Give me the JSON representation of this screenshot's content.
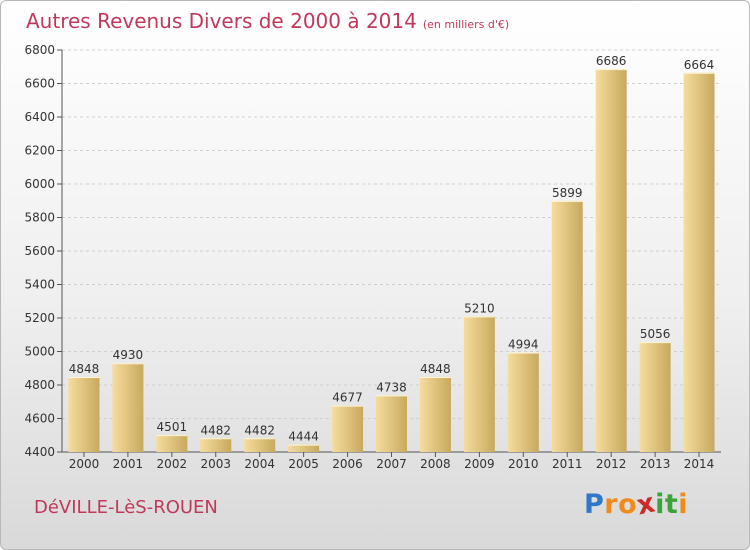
{
  "title": "Autres Revenus Divers de 2000 à 2014",
  "subtitle": "(en milliers d'€)",
  "location": "DéVILLE-LèS-ROUEN",
  "brand": {
    "letters": [
      "P",
      "r",
      "o",
      "x",
      "i",
      "t",
      "i"
    ],
    "colors": [
      "#2f77c8",
      "#f08a1c",
      "#f08a1c",
      "#cc2b2b",
      "#3aa33a",
      "#3aa33a",
      "#f08a1c"
    ]
  },
  "colors": {
    "title": "#c0395a",
    "bar_light": "#f6dd9e",
    "bar_dark": "#c7a95e"
  },
  "chart_data": {
    "type": "bar",
    "title": "Autres Revenus Divers de 2000 à 2014",
    "subtitle": "(en milliers d'€)",
    "categories": [
      "2000",
      "2001",
      "2002",
      "2003",
      "2004",
      "2005",
      "2006",
      "2007",
      "2008",
      "2009",
      "2010",
      "2011",
      "2012",
      "2013",
      "2014"
    ],
    "values": [
      4848,
      4930,
      4501,
      4482,
      4482,
      4444,
      4677,
      4738,
      4848,
      5210,
      4994,
      5899,
      6686,
      5056,
      6664
    ],
    "value_labels": [
      "4848",
      "4930",
      "4501",
      "4482",
      "4482",
      "4444",
      "4677",
      "4738",
      "4848",
      "5210",
      "4994",
      "5899",
      "6686",
      "5056",
      "6664"
    ],
    "yticks": [
      "4400",
      "4600",
      "4800",
      "5000",
      "5200",
      "5400",
      "5600",
      "5800",
      "6000",
      "6200",
      "6400",
      "6600",
      "6800"
    ],
    "ylim": [
      4400,
      6800
    ],
    "grid": true,
    "legend": "none"
  }
}
